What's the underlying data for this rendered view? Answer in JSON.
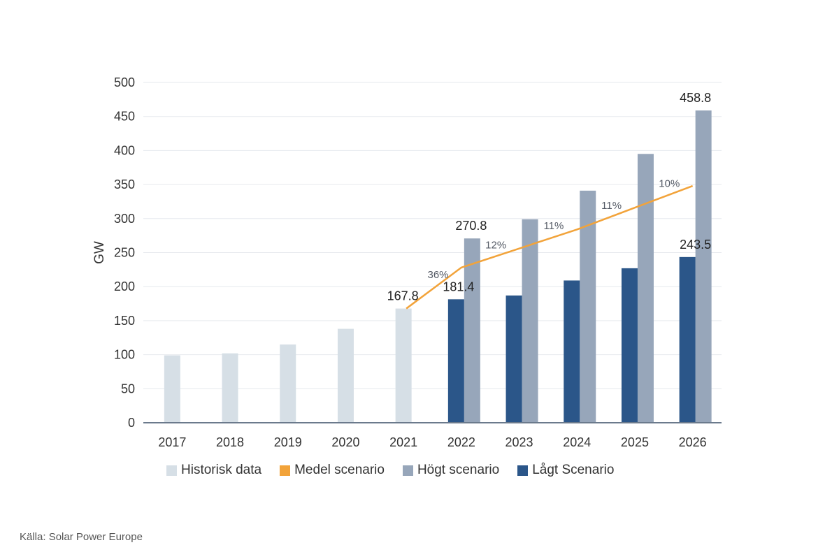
{
  "chart_data": {
    "type": "bar",
    "ylabel": "GW",
    "xlabel": "",
    "ylim": [
      0,
      500
    ],
    "yticks": [
      0,
      50,
      100,
      150,
      200,
      250,
      300,
      350,
      400,
      450,
      500
    ],
    "categories": [
      "2017",
      "2018",
      "2019",
      "2020",
      "2021",
      "2022",
      "2023",
      "2024",
      "2025",
      "2026"
    ],
    "grid": true,
    "legend_position": "bottom",
    "series": [
      {
        "name": "Historisk data",
        "type": "bar",
        "color": "#d6dfe6",
        "values": [
          99,
          102,
          115,
          138,
          167.8,
          null,
          null,
          null,
          null,
          null
        ]
      },
      {
        "name": "Medel scenario",
        "type": "line",
        "color": "#f2a33a",
        "values": [
          null,
          null,
          null,
          null,
          167.8,
          228,
          256,
          284,
          316,
          348
        ],
        "growth_labels": [
          null,
          null,
          null,
          null,
          null,
          "36%",
          "12%",
          "11%",
          "11%",
          "10%"
        ]
      },
      {
        "name": "Högt scenario",
        "type": "bar",
        "color": "#97a6ba",
        "values": [
          null,
          null,
          null,
          null,
          null,
          270.8,
          299,
          341,
          395,
          458.8
        ]
      },
      {
        "name": "Lågt Scenario",
        "type": "bar",
        "color": "#2b5689",
        "values": [
          null,
          null,
          null,
          null,
          null,
          181.4,
          187,
          209,
          227,
          243.5
        ]
      }
    ],
    "data_labels": [
      {
        "category": "2021",
        "value": 167.8,
        "text": "167.8"
      },
      {
        "category": "2022",
        "value": 270.8,
        "text": "270.8"
      },
      {
        "category": "2022",
        "value": 181.4,
        "text": "181.4"
      },
      {
        "category": "2026",
        "value": 458.8,
        "text": "458.8"
      },
      {
        "category": "2026",
        "value": 243.5,
        "text": "243.5"
      }
    ]
  },
  "source": "Källa: Solar Power Europe"
}
